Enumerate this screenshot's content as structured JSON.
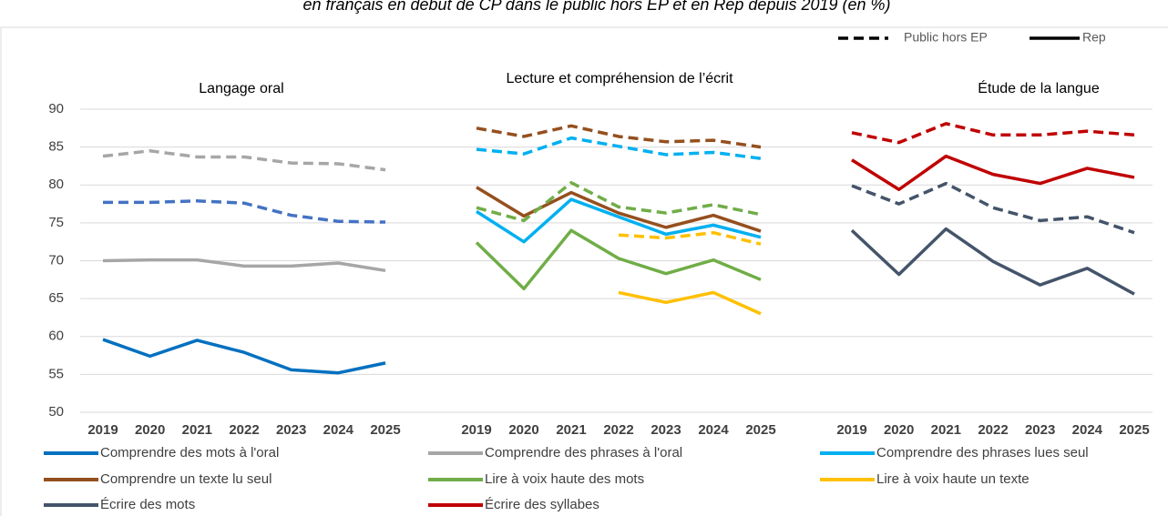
{
  "title": "en français en début de CP dans le public hors EP et en Rep depuis 2019 (en %)",
  "style_legend": [
    {
      "name": "Public hors EP",
      "dash": true
    },
    {
      "name": "Rep",
      "dash": false
    }
  ],
  "chart_data": [
    {
      "type": "line",
      "title": "Langage oral",
      "categories": [
        "2019",
        "2020",
        "2021",
        "2022",
        "2023",
        "2024",
        "2025"
      ],
      "ylim": [
        50,
        90
      ],
      "yticks": [
        50,
        55,
        60,
        65,
        70,
        75,
        80,
        85,
        90
      ],
      "grid": true,
      "series": [
        {
          "name": "Comprendre des mots à l'oral",
          "color": "#0070c0",
          "public_color": "#4472c4",
          "public": [
            77.7,
            77.7,
            77.9,
            77.6,
            76,
            75.2,
            75.1
          ],
          "rep": [
            59.6,
            57.4,
            59.5,
            57.9,
            55.6,
            55.2,
            56.5
          ]
        },
        {
          "name": "Comprendre des phrases à l'oral",
          "color": "#a6a6a6",
          "public_color": "#a6a6a6",
          "public": [
            83.8,
            84.5,
            83.7,
            83.7,
            82.9,
            82.8,
            82
          ],
          "rep": [
            70,
            70.1,
            70.1,
            69.3,
            69.3,
            69.7,
            68.7
          ]
        }
      ]
    },
    {
      "type": "line",
      "title": "Lecture et compréhension de l’écrit",
      "categories": [
        "2019",
        "2020",
        "2021",
        "2022",
        "2023",
        "2024",
        "2025"
      ],
      "ylim": [
        50,
        90
      ],
      "series": [
        {
          "name": "Comprendre des phrases lues seul",
          "color": "#00b0f0",
          "public_color": "#00b0f0",
          "public": [
            84.7,
            84.1,
            86.2,
            85.1,
            84,
            84.3,
            83.5
          ],
          "rep": [
            76.5,
            72.5,
            78.1,
            75.8,
            73.5,
            74.7,
            73.1
          ]
        },
        {
          "name": "Comprendre un texte lu seul",
          "color": "#954f1e",
          "public_color": "#954f1e",
          "public": [
            87.5,
            86.4,
            87.8,
            86.4,
            85.7,
            85.9,
            85
          ],
          "rep": [
            79.7,
            75.9,
            79,
            76.3,
            74.4,
            76,
            73.9
          ]
        },
        {
          "name": "Lire à voix haute des mots",
          "color": "#70ad47",
          "public_color": "#70ad47",
          "public": [
            77,
            75.3,
            80.3,
            77.1,
            76.3,
            77.4,
            76.1
          ],
          "rep": [
            72.4,
            66.3,
            74,
            70.3,
            68.3,
            70.1,
            67.5
          ]
        },
        {
          "name": "Lire à voix haute un texte",
          "color": "#ffc000",
          "public_color": "#ffc000",
          "public": [
            null,
            null,
            null,
            73.4,
            73,
            73.7,
            72.2
          ],
          "rep": [
            null,
            null,
            null,
            65.8,
            64.5,
            65.8,
            63
          ]
        }
      ]
    },
    {
      "type": "line",
      "title": "Étude de la langue",
      "categories": [
        "2019",
        "2020",
        "2021",
        "2022",
        "2023",
        "2024",
        "2025"
      ],
      "ylim": [
        50,
        90
      ],
      "series": [
        {
          "name": "Écrire des mots",
          "color": "#44546a",
          "public_color": "#44546a",
          "public": [
            79.9,
            77.5,
            80.2,
            77,
            75.3,
            75.8,
            73.7
          ],
          "rep": [
            74,
            68.2,
            74.2,
            69.9,
            66.8,
            69,
            65.6
          ]
        },
        {
          "name": "Écrire des syllabes",
          "color": "#c00000",
          "public_color": "#c00000",
          "public": [
            86.9,
            85.6,
            88.1,
            86.6,
            86.6,
            87.1,
            86.6
          ],
          "rep": [
            83.3,
            79.4,
            83.8,
            81.4,
            80.2,
            82.2,
            81
          ]
        }
      ]
    }
  ]
}
